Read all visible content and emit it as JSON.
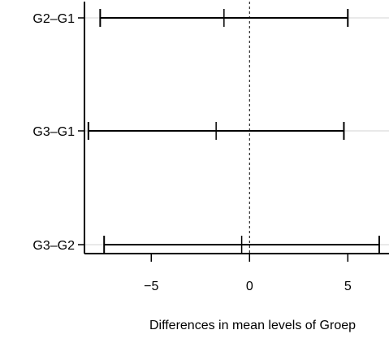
{
  "chart_data": {
    "type": "interval",
    "title": "",
    "xlabel": "Differences in mean levels of Groep",
    "ylabel": "",
    "xlim": [
      -8.4,
      6.6
    ],
    "xticks": [
      -5,
      0,
      5
    ],
    "xtick_labels": [
      "−5",
      "0",
      "5"
    ],
    "reference_line": 0,
    "grid": "horizontal-at-categories",
    "categories": [
      "G2–G1",
      "G3–G1",
      "G3–G2"
    ],
    "intervals": [
      {
        "label": "G2–G1",
        "lower": -7.6,
        "estimate": -1.3,
        "upper": 5.0
      },
      {
        "label": "G3–G1",
        "lower": -8.2,
        "estimate": -1.7,
        "upper": 4.8
      },
      {
        "label": "G3–G2",
        "lower": -7.4,
        "estimate": -0.4,
        "upper": 6.6
      }
    ]
  }
}
